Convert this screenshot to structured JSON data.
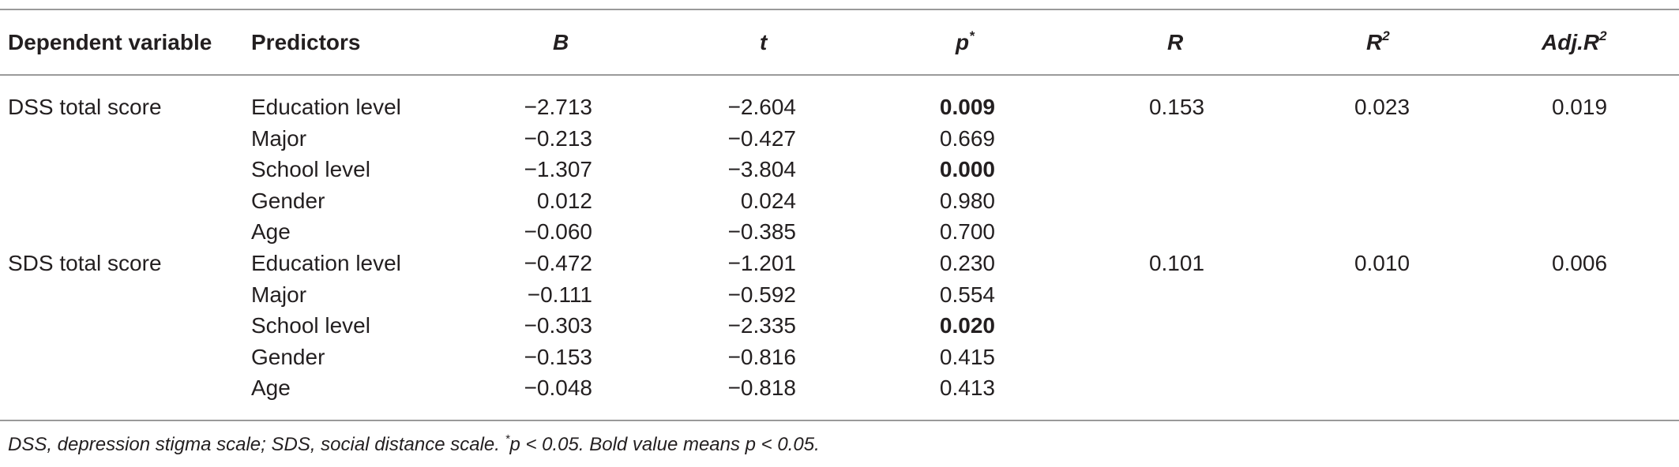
{
  "table": {
    "headers": {
      "dependent": "Dependent variable",
      "predictors": "Predictors",
      "B": "B",
      "t": "t",
      "p": "p",
      "p_sup": "*",
      "R": "R",
      "R2": "R",
      "R2_sup": "2",
      "adjR2": "Adj.R",
      "adjR2_sup": "2"
    },
    "rows": [
      {
        "dependent": "DSS total score",
        "predictor": "Education level",
        "B": "−2.713",
        "t": "−2.604",
        "p": "0.009",
        "p_bold": true,
        "R": "0.153",
        "R2": "0.023",
        "adjR2": "0.019"
      },
      {
        "dependent": "",
        "predictor": "Major",
        "B": "−0.213",
        "t": "−0.427",
        "p": "0.669",
        "p_bold": false,
        "R": "",
        "R2": "",
        "adjR2": ""
      },
      {
        "dependent": "",
        "predictor": "School level",
        "B": "−1.307",
        "t": "−3.804",
        "p": "0.000",
        "p_bold": true,
        "R": "",
        "R2": "",
        "adjR2": ""
      },
      {
        "dependent": "",
        "predictor": "Gender",
        "B": "0.012",
        "t": "0.024",
        "p": "0.980",
        "p_bold": false,
        "R": "",
        "R2": "",
        "adjR2": ""
      },
      {
        "dependent": "",
        "predictor": "Age",
        "B": "−0.060",
        "t": "−0.385",
        "p": "0.700",
        "p_bold": false,
        "R": "",
        "R2": "",
        "adjR2": ""
      },
      {
        "dependent": "SDS total score",
        "predictor": "Education level",
        "B": "−0.472",
        "t": "−1.201",
        "p": "0.230",
        "p_bold": false,
        "R": "0.101",
        "R2": "0.010",
        "adjR2": "0.006"
      },
      {
        "dependent": "",
        "predictor": "Major",
        "B": "−0.111",
        "t": "−0.592",
        "p": "0.554",
        "p_bold": false,
        "R": "",
        "R2": "",
        "adjR2": ""
      },
      {
        "dependent": "",
        "predictor": "School level",
        "B": "−0.303",
        "t": "−2.335",
        "p": "0.020",
        "p_bold": true,
        "R": "",
        "R2": "",
        "adjR2": ""
      },
      {
        "dependent": "",
        "predictor": "Gender",
        "B": "−0.153",
        "t": "−0.816",
        "p": "0.415",
        "p_bold": false,
        "R": "",
        "R2": "",
        "adjR2": ""
      },
      {
        "dependent": "",
        "predictor": "Age",
        "B": "−0.048",
        "t": "−0.818",
        "p": "0.413",
        "p_bold": false,
        "R": "",
        "R2": "",
        "adjR2": ""
      }
    ]
  },
  "footnote": {
    "part1": "DSS, depression stigma scale; SDS, social distance scale. ",
    "sup": "*",
    "part2": "p < 0.05. Bold value means p < 0.05."
  }
}
